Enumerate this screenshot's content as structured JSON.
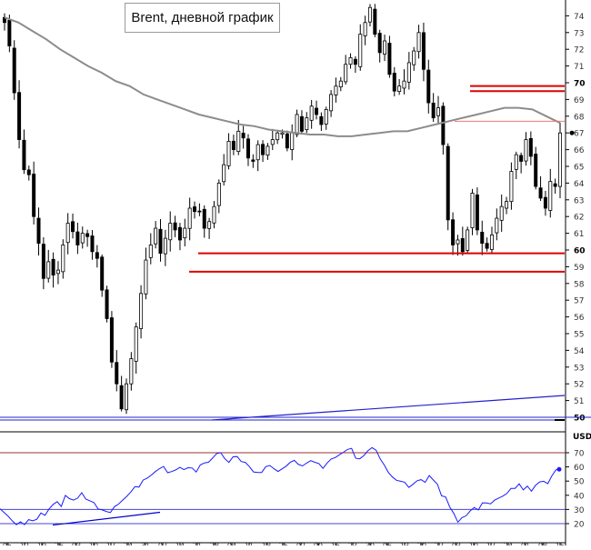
{
  "chart_data": [
    {
      "type": "candlestick",
      "title": "Brent, дневной график",
      "ylim": [
        49.7,
        75.4
      ],
      "yticks": [
        50,
        51,
        52,
        53,
        54,
        55,
        56,
        57,
        58,
        59,
        60,
        61,
        62,
        63,
        64,
        65,
        66,
        67,
        68,
        69,
        70,
        71,
        72,
        73,
        74
      ],
      "yticks_bold": [
        50,
        60,
        70
      ],
      "xticks": [
        "05",
        "12",
        "19",
        "26",
        "03",
        "10",
        "17",
        "24",
        "31",
        "07",
        "14",
        "21",
        "28",
        "04",
        "11",
        "18",
        "25",
        "02",
        "09",
        "16",
        "23",
        "30",
        "06",
        "13",
        "20",
        "27",
        "03",
        "10",
        "17",
        "24",
        "01",
        "08",
        "15"
      ],
      "last_price": 67.0,
      "candles_close": [
        73.6,
        72.2,
        69.4,
        66.6,
        64.8,
        64.5,
        62.0,
        60.4,
        58.3,
        59.3,
        58.5,
        58.8,
        60.3,
        61.6,
        61.1,
        60.3,
        61.0,
        60.8,
        59.9,
        59.5,
        57.6,
        55.9,
        53.3,
        52.0,
        50.5,
        52.0,
        53.5,
        55.4,
        57.4,
        59.4,
        60.3,
        61.3,
        59.8,
        60.7,
        61.6,
        61.2,
        60.6,
        61.3,
        62.5,
        62.3,
        62.3,
        61.3,
        61.7,
        62.6,
        64.0,
        65.1,
        66.5,
        66.0,
        67.1,
        66.7,
        65.5,
        65.3,
        66.3,
        65.7,
        66.2,
        66.6,
        67.0,
        67.0,
        66.1,
        67.0,
        68.1,
        67.1,
        67.9,
        68.6,
        68.1,
        67.5,
        68.4,
        69.3,
        69.8,
        70.1,
        71.1,
        71.5,
        71.1,
        72.9,
        73.6,
        74.5,
        72.9,
        71.8,
        72.5,
        70.5,
        69.5,
        69.8,
        70.1,
        71.2,
        71.9,
        73.0,
        70.8,
        68.8,
        67.9,
        68.5,
        66.3,
        61.8,
        60.3,
        60.6,
        59.9,
        61.2,
        63.4,
        61.2,
        60.4,
        60.1,
        60.9,
        61.9,
        62.6,
        62.9,
        64.7,
        65.7,
        65.3,
        66.6,
        65.6,
        63.8,
        63.1,
        62.5,
        64.1,
        63.8,
        67.0
      ],
      "sma_200": [
        73.9,
        73.6,
        73.1,
        72.6,
        72.0,
        71.5,
        71.0,
        70.6,
        70.1,
        69.8,
        69.3,
        69.0,
        68.7,
        68.4,
        68.1,
        67.9,
        67.7,
        67.5,
        67.4,
        67.2,
        67.1,
        67.0,
        66.9,
        66.9,
        66.8,
        66.8,
        66.9,
        67.0,
        67.1,
        67.1,
        67.3,
        67.5,
        67.7,
        67.9,
        68.1,
        68.3,
        68.5,
        68.5,
        68.4,
        68.0,
        67.6
      ],
      "horizontal_levels": [
        {
          "value": 69.8,
          "color": "#dd0000"
        },
        {
          "value": 69.5,
          "color": "#dd0000"
        },
        {
          "value": 67.7,
          "color": "#ee7777"
        },
        {
          "value": 59.8,
          "color": "#dd0000"
        },
        {
          "value": 58.7,
          "color": "#dd0000"
        }
      ],
      "grid": false,
      "colors": {
        "candles": "#000000",
        "sma": "#8c8c8c",
        "levels": "#dd0000",
        "axis": "#000000"
      }
    },
    {
      "type": "line",
      "title": "",
      "ylabel": "USD",
      "ylim": [
        14,
        76
      ],
      "yticks": [
        20,
        30,
        40,
        50,
        60,
        70
      ],
      "levels": [
        70,
        30,
        20
      ],
      "values": [
        30.5,
        27.8,
        25.2,
        22.0,
        19.2,
        21.3,
        19.3,
        22.8,
        22.0,
        23.1,
        27.5,
        25.9,
        30.4,
        33.6,
        35.5,
        32.1,
        39.9,
        37.6,
        36.6,
        38.0,
        41.8,
        37.3,
        36.1,
        34.8,
        30.3,
        29.7,
        28.6,
        27.8,
        32.0,
        33.8,
        36.6,
        39.2,
        42.3,
        46.1,
        45.8,
        50.7,
        52.1,
        54.2,
        56.7,
        58.8,
        60.3,
        55.9,
        56.7,
        57.9,
        59.7,
        58.1,
        59.4,
        59.2,
        56.4,
        61.4,
        62.8,
        63.3,
        66.2,
        69.4,
        70.0,
        65.7,
        63.2,
        67.1,
        67.3,
        63.8,
        63.2,
        60.2,
        56.5,
        56.0,
        56.1,
        60.2,
        61.0,
        58.7,
        56.8,
        58.6,
        60.5,
        63.2,
        64.6,
        61.7,
        60.7,
        62.7,
        64.4,
        63.3,
        62.4,
        59.0,
        62.7,
        65.6,
        66.6,
        68.5,
        70.3,
        72.3,
        73.1,
        66.1,
        65.7,
        68.0,
        71.5,
        73.6,
        71.7,
        65.6,
        61.3,
        56.0,
        52.9,
        50.6,
        49.9,
        49.2,
        45.5,
        47.7,
        50.2,
        51.0,
        49.1,
        53.9,
        50.8,
        47.8,
        39.7,
        38.8,
        31.8,
        27.2,
        21.0,
        24.2,
        25.5,
        29.0,
        31.4,
        29.7,
        34.7,
        34.6,
        34.0,
        36.6,
        38.1,
        39.4,
        41.3,
        44.8,
        44.9,
        48.1,
        43.8,
        46.5,
        42.9,
        47.0,
        49.4,
        49.9,
        48.2,
        53.7,
        58.0,
        58.3
      ],
      "trendlines": [
        {
          "from": [
            6,
            19
          ],
          "to": [
            16,
            28
          ],
          "color": "#0000cc"
        }
      ],
      "grid": false,
      "colors": {
        "line": "#1a1aff",
        "levels": "#4444dd"
      }
    }
  ]
}
